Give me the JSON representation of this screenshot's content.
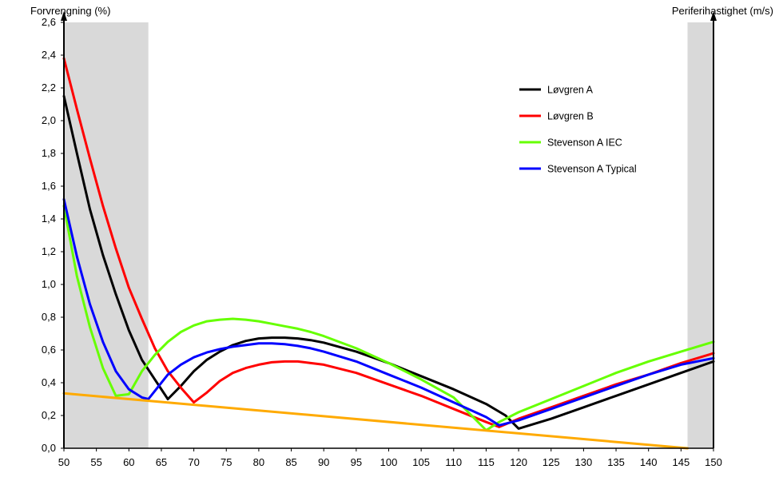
{
  "chart_data": {
    "type": "line",
    "ylabel_left": "Forvrengning (%)",
    "ylabel_right": "Periferihastighet (m/s)",
    "xlim": [
      50,
      150
    ],
    "ylim": [
      0,
      2.6
    ],
    "x_ticks": [
      50,
      55,
      60,
      65,
      70,
      75,
      80,
      85,
      90,
      95,
      100,
      105,
      110,
      115,
      120,
      125,
      130,
      135,
      140,
      145,
      150
    ],
    "y_ticks": [
      0.0,
      0.2,
      0.4,
      0.6,
      0.8,
      1.0,
      1.2,
      1.4,
      1.6,
      1.8,
      2.0,
      2.2,
      2.4,
      2.6
    ],
    "y_tick_labels": [
      "0,0",
      "0,2",
      "0,4",
      "0,6",
      "0,8",
      "1,0",
      "1,2",
      "1,4",
      "1,6",
      "1,8",
      "2,0",
      "2,2",
      "2,4",
      "2,6"
    ],
    "shaded_regions": [
      [
        50,
        63
      ],
      [
        146,
        150
      ]
    ],
    "legend_position": "top-right",
    "colors": {
      "shade": "#d9d9d9",
      "axis": "#000000"
    },
    "series": [
      {
        "name": "Løvgren A",
        "color": "#000000",
        "x": [
          50,
          52,
          54,
          56,
          58,
          60,
          62,
          64,
          66,
          68,
          70,
          72,
          74,
          76,
          78,
          80,
          82,
          84,
          86,
          88,
          90,
          95,
          100,
          105,
          110,
          115,
          118,
          120,
          125,
          130,
          135,
          140,
          145,
          150
        ],
        "y": [
          2.15,
          1.8,
          1.46,
          1.18,
          0.94,
          0.72,
          0.54,
          0.42,
          0.3,
          0.38,
          0.47,
          0.54,
          0.59,
          0.63,
          0.655,
          0.67,
          0.675,
          0.675,
          0.67,
          0.66,
          0.645,
          0.59,
          0.52,
          0.44,
          0.36,
          0.27,
          0.2,
          0.12,
          0.18,
          0.25,
          0.32,
          0.39,
          0.46,
          0.53
        ]
      },
      {
        "name": "Løvgren B",
        "color": "#ff0000",
        "x": [
          50,
          52,
          54,
          56,
          58,
          60,
          62,
          64,
          66,
          68,
          70,
          72,
          74,
          76,
          78,
          80,
          82,
          84,
          86,
          88,
          90,
          95,
          100,
          105,
          110,
          115,
          117,
          120,
          125,
          130,
          135,
          140,
          145,
          150
        ],
        "y": [
          2.38,
          2.07,
          1.77,
          1.48,
          1.22,
          0.98,
          0.79,
          0.61,
          0.47,
          0.37,
          0.28,
          0.34,
          0.41,
          0.46,
          0.49,
          0.51,
          0.525,
          0.53,
          0.53,
          0.52,
          0.51,
          0.46,
          0.39,
          0.32,
          0.24,
          0.16,
          0.13,
          0.18,
          0.25,
          0.32,
          0.39,
          0.45,
          0.52,
          0.58
        ]
      },
      {
        "name": "Stevenson A IEC",
        "color": "#66ff00",
        "x": [
          50,
          52,
          54,
          56,
          58,
          60,
          62,
          64,
          66,
          68,
          70,
          72,
          74,
          76,
          78,
          80,
          82,
          84,
          86,
          88,
          90,
          95,
          100,
          105,
          110,
          115,
          117,
          120,
          125,
          130,
          135,
          140,
          145,
          150
        ],
        "y": [
          1.48,
          1.05,
          0.74,
          0.49,
          0.32,
          0.33,
          0.47,
          0.57,
          0.65,
          0.71,
          0.75,
          0.775,
          0.785,
          0.79,
          0.785,
          0.775,
          0.76,
          0.745,
          0.73,
          0.71,
          0.685,
          0.61,
          0.52,
          0.42,
          0.31,
          0.11,
          0.16,
          0.22,
          0.3,
          0.38,
          0.46,
          0.53,
          0.59,
          0.65
        ]
      },
      {
        "name": "Stevenson A Typical",
        "color": "#0000ff",
        "x": [
          50,
          52,
          54,
          56,
          58,
          60,
          62,
          63,
          64,
          66,
          68,
          70,
          72,
          74,
          76,
          78,
          80,
          82,
          84,
          86,
          88,
          90,
          95,
          100,
          105,
          110,
          115,
          117,
          120,
          125,
          130,
          135,
          140,
          145,
          150
        ],
        "y": [
          1.52,
          1.17,
          0.88,
          0.65,
          0.47,
          0.36,
          0.31,
          0.3,
          0.35,
          0.45,
          0.51,
          0.555,
          0.585,
          0.605,
          0.62,
          0.63,
          0.64,
          0.64,
          0.635,
          0.625,
          0.61,
          0.59,
          0.53,
          0.45,
          0.37,
          0.28,
          0.19,
          0.14,
          0.17,
          0.24,
          0.31,
          0.38,
          0.45,
          0.51,
          0.55
        ]
      },
      {
        "name": "",
        "color": "#ffaa00",
        "x": [
          50,
          146
        ],
        "y": [
          0.335,
          0.0
        ]
      }
    ]
  }
}
